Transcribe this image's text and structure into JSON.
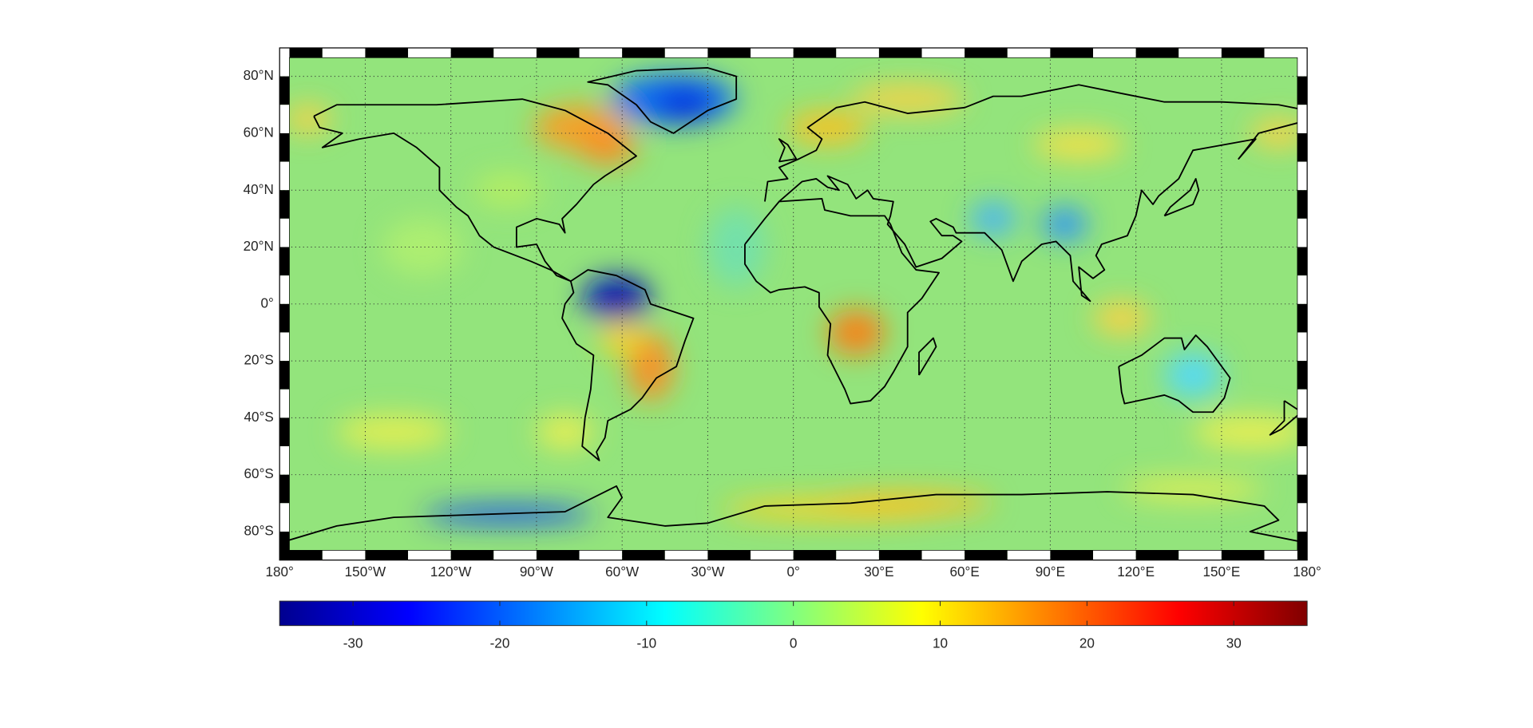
{
  "map": {
    "lat_ticks": [
      {
        "value": 80,
        "label": "80°N"
      },
      {
        "value": 60,
        "label": "60°N"
      },
      {
        "value": 40,
        "label": "40°N"
      },
      {
        "value": 20,
        "label": "20°N"
      },
      {
        "value": 0,
        "label": "0°"
      },
      {
        "value": -20,
        "label": "20°S"
      },
      {
        "value": -40,
        "label": "40°S"
      },
      {
        "value": -60,
        "label": "60°S"
      },
      {
        "value": -80,
        "label": "80°S"
      }
    ],
    "lon_ticks": [
      {
        "value": -180,
        "label": "180°"
      },
      {
        "value": -150,
        "label": "150°W"
      },
      {
        "value": -120,
        "label": "120°W"
      },
      {
        "value": -90,
        "label": "90°W"
      },
      {
        "value": -60,
        "label": "60°W"
      },
      {
        "value": -30,
        "label": "30°W"
      },
      {
        "value": 0,
        "label": "0°"
      },
      {
        "value": 30,
        "label": "30°E"
      },
      {
        "value": 60,
        "label": "60°E"
      },
      {
        "value": 90,
        "label": "90°E"
      },
      {
        "value": 120,
        "label": "120°E"
      },
      {
        "value": 150,
        "label": "150°E"
      },
      {
        "value": 180,
        "label": "180°"
      }
    ],
    "colorbar": {
      "lim": [
        -35,
        35
      ],
      "ticks": [
        -30,
        -20,
        -10,
        0,
        10,
        20,
        30
      ]
    }
  }
}
